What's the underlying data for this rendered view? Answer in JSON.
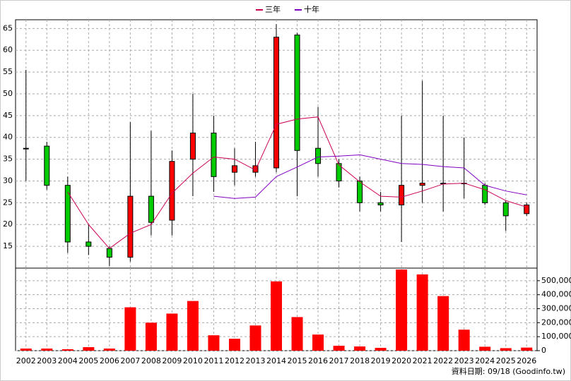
{
  "chart_data": {
    "type": "candlestick",
    "categories": [
      "2002",
      "2003",
      "2004",
      "2005",
      "2006",
      "2007",
      "2008",
      "2009",
      "2010",
      "2011",
      "2012",
      "2013",
      "2014",
      "2015",
      "2016",
      "2017",
      "2018",
      "2019",
      "2020",
      "2021",
      "2022",
      "2023",
      "2024",
      "2025",
      "2026"
    ],
    "open": [
      37.5,
      38,
      29,
      16,
      14.5,
      12.5,
      26.5,
      21,
      35,
      41,
      32,
      32,
      33,
      63.5,
      37.5,
      34,
      30,
      25,
      24.5,
      29,
      29.5,
      29.5,
      29,
      25,
      22.5
    ],
    "high": [
      55.5,
      39,
      31,
      20,
      15,
      43.5,
      41.5,
      37,
      50,
      45,
      37.5,
      39,
      66,
      64,
      47,
      35,
      31,
      27.5,
      45,
      53,
      45,
      40,
      29.5,
      25.5,
      25
    ],
    "low": [
      30,
      28,
      13.5,
      13,
      10.5,
      11.5,
      17.5,
      17.5,
      26.5,
      27.5,
      29,
      31,
      32,
      26.5,
      31,
      28.5,
      23,
      23,
      16,
      25,
      23,
      26,
      24.5,
      18.5,
      22
    ],
    "close": [
      37.5,
      29,
      16,
      15,
      12.5,
      26.5,
      20.5,
      34.5,
      41,
      31,
      33.5,
      33.5,
      63,
      37,
      34,
      30,
      25,
      24.5,
      29,
      29.5,
      29.5,
      29.5,
      25,
      22,
      24.5
    ],
    "up_color": "#ff0000",
    "down_color": "#00cc00",
    "ylim": [
      10,
      67
    ],
    "yticks": [
      15,
      20,
      25,
      30,
      35,
      40,
      45,
      50,
      55,
      60,
      65
    ],
    "grid": true,
    "series": [
      {
        "name": "三年",
        "color": "#cc0055",
        "values": [
          null,
          null,
          27.5,
          20,
          14.5,
          18,
          20,
          27.2,
          31.8,
          35.5,
          35,
          32.5,
          43,
          44.2,
          44.7,
          33.7,
          29.8,
          26.5,
          26.3,
          27.7,
          29.3,
          29.5,
          28,
          25.5,
          24
        ]
      },
      {
        "name": "十年",
        "color": "#8000c0",
        "values": [
          null,
          null,
          null,
          null,
          null,
          null,
          null,
          null,
          null,
          26.5,
          26,
          26.3,
          31,
          33.2,
          35.5,
          35.7,
          36,
          35,
          34,
          33.8,
          33.3,
          33,
          29,
          27.7,
          26.8
        ]
      }
    ],
    "volume": {
      "color": "#ff0000",
      "values": [
        15000,
        15000,
        10000,
        25000,
        15000,
        310000,
        200000,
        265000,
        355000,
        110000,
        85000,
        180000,
        495000,
        240000,
        115000,
        35000,
        30000,
        20000,
        580000,
        545000,
        390000,
        150000,
        28000,
        18000,
        22000
      ],
      "ylim": [
        0,
        590000
      ],
      "yticks": [
        0,
        {
          "value": 100000,
          "label": "100,000"
        },
        {
          "value": 200000,
          "label": "200,000"
        },
        {
          "value": 300000,
          "label": "300,000"
        },
        {
          "value": 400000,
          "label": "400,000"
        },
        {
          "value": 500000,
          "label": "500,000"
        }
      ]
    },
    "source": "資料日期: 09/18  (Goodinfo.tw)"
  }
}
